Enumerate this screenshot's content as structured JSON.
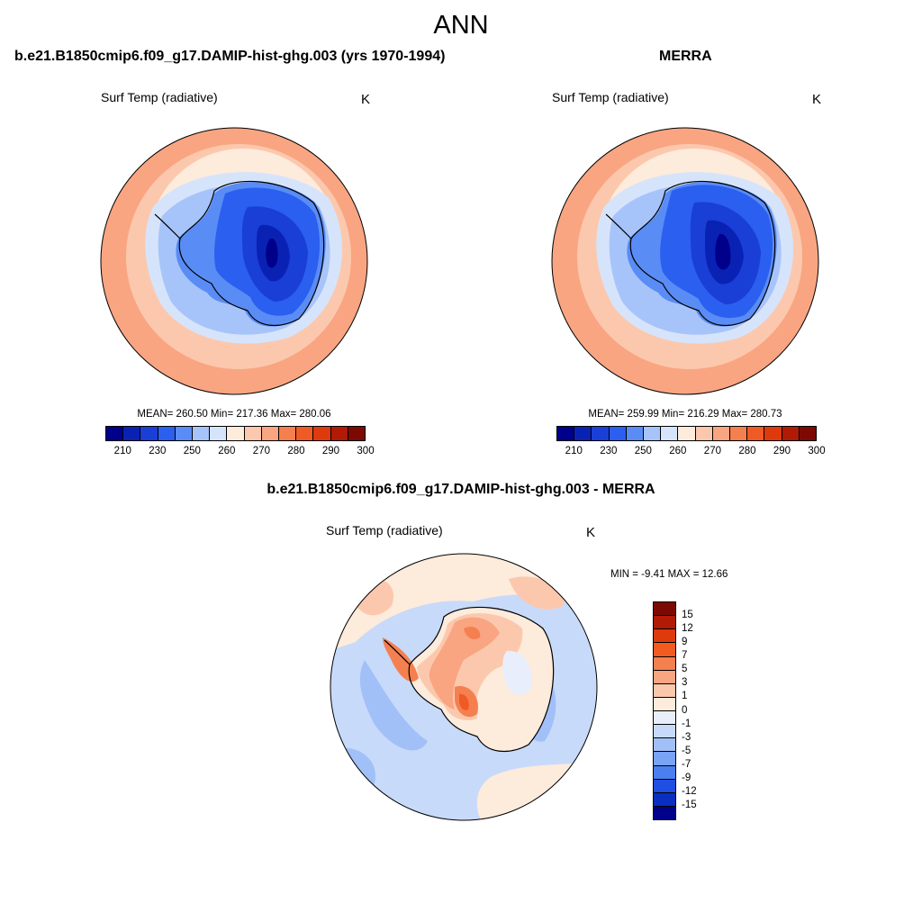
{
  "main_title": "ANN",
  "panels": [
    {
      "title": "b.e21.B1850cmip6.f09_g17.DAMIP-hist-ghg.003 (yrs 1970-1994)",
      "variable": "Surf Temp (radiative)",
      "units": "K",
      "stats": "MEAN= 260.50  Min= 217.36  Max= 280.06"
    },
    {
      "title": "MERRA",
      "variable": "Surf Temp (radiative)",
      "units": "K",
      "stats": "MEAN= 259.99  Min= 216.29  Max= 280.73"
    },
    {
      "title": "b.e21.B1850cmip6.f09_g17.DAMIP-hist-ghg.003 - MERRA",
      "variable": "Surf Temp (radiative)",
      "units": "K",
      "stats": "MIN =  -9.41 MAX =  12.66"
    }
  ],
  "abs_colorbar": {
    "labels": [
      "210",
      "230",
      "250",
      "260",
      "270",
      "280",
      "290",
      "300"
    ],
    "colors": [
      "#00008b",
      "#0a22b4",
      "#1a3fd6",
      "#2b5ff0",
      "#5a8cf5",
      "#a7c4fa",
      "#d6e4fb",
      "#fdebdc",
      "#fcc8ad",
      "#f9a582",
      "#f5804f",
      "#ef5a25",
      "#df3a0c",
      "#b11a05",
      "#7d0a02"
    ]
  },
  "diff_colorbar": {
    "labels": [
      "15",
      "12",
      "9",
      "7",
      "5",
      "3",
      "1",
      "0",
      "-1",
      "-3",
      "-5",
      "-7",
      "-9",
      "-12",
      "-15"
    ],
    "colors": [
      "#7d0a02",
      "#b11a05",
      "#df3a0c",
      "#f25a20",
      "#f5804f",
      "#f9a582",
      "#fcc8ad",
      "#fdebdc",
      "#e8eefb",
      "#c8dafa",
      "#a2c0f8",
      "#7aa2f5",
      "#4a7ff0",
      "#1e4ee2",
      "#0a2fc0",
      "#00008b"
    ]
  }
}
